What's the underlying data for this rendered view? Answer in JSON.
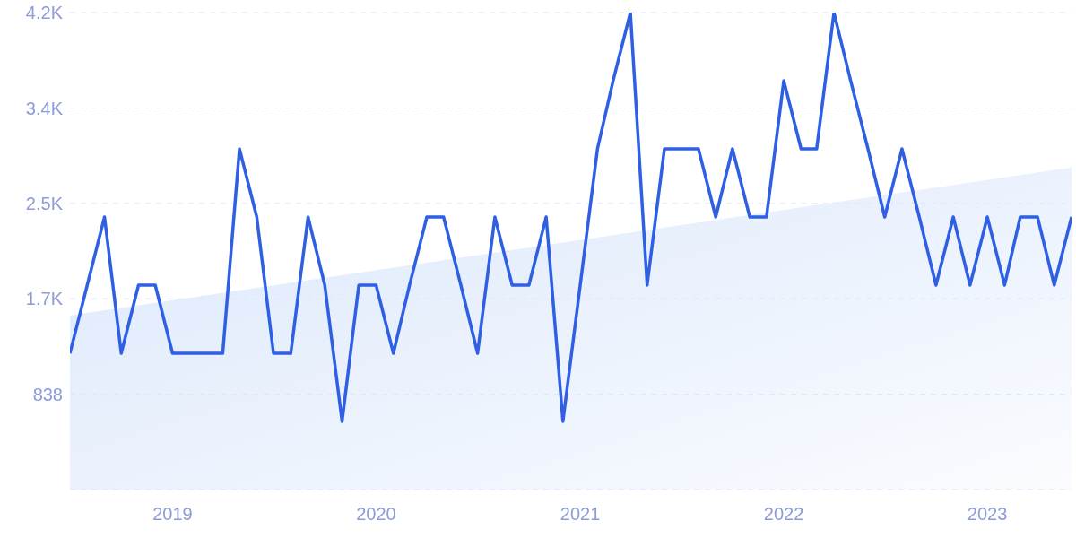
{
  "chart_data": {
    "type": "line",
    "x": [
      "2018-07",
      "2018-08",
      "2018-09",
      "2018-10",
      "2018-11",
      "2018-12",
      "2019-01",
      "2019-02",
      "2019-03",
      "2019-04",
      "2019-05",
      "2019-06",
      "2019-07",
      "2019-08",
      "2019-09",
      "2019-10",
      "2019-11",
      "2019-12",
      "2020-01",
      "2020-02",
      "2020-03",
      "2020-04",
      "2020-05",
      "2020-06",
      "2020-07",
      "2020-08",
      "2020-09",
      "2020-10",
      "2020-11",
      "2020-12",
      "2021-01",
      "2021-02",
      "2021-03",
      "2021-04",
      "2021-05",
      "2021-06",
      "2021-07",
      "2021-08",
      "2021-09",
      "2021-10",
      "2021-11",
      "2021-12",
      "2022-01",
      "2022-02",
      "2022-03",
      "2022-04",
      "2022-05",
      "2022-06",
      "2022-07",
      "2022-08",
      "2022-09",
      "2022-10",
      "2022-11",
      "2022-12",
      "2023-01",
      "2023-02",
      "2023-03",
      "2023-04",
      "2023-05",
      "2023-06"
    ],
    "series": [
      {
        "color": "#2f5fe3",
        "values": [
          1197,
          1796,
          2394,
          1197,
          1796,
          1796,
          1197,
          1197,
          1197,
          1197,
          2993,
          2394,
          1197,
          1197,
          2394,
          1796,
          599,
          1796,
          1796,
          1197,
          1796,
          2394,
          2394,
          1796,
          1197,
          2394,
          1796,
          1796,
          2394,
          599,
          1796,
          2993,
          3591,
          4190,
          1796,
          2993,
          2993,
          2993,
          2394,
          2993,
          2394,
          2394,
          3591,
          2993,
          2993,
          4190,
          3591,
          2993,
          2394,
          2993,
          2394,
          1796,
          2394,
          1796,
          2394,
          1796,
          2394,
          2394,
          1796,
          2394
        ]
      },
      {
        "type": "area",
        "color": "#dce8fb",
        "x": [
          "2018-07",
          "2023-06"
        ],
        "values": [
          1530,
          2830
        ]
      }
    ],
    "xlim": [
      "2018-07",
      "2023-06"
    ],
    "xticks": [
      "2019",
      "2020",
      "2021",
      "2022",
      "2023"
    ],
    "ylim": [
      0,
      4190
    ],
    "yticks": [
      838,
      {
        "value": 1676,
        "label": "1.7K"
      },
      {
        "value": 2514,
        "label": "2.5K"
      },
      {
        "value": 3352,
        "label": "3.4K"
      },
      {
        "value": 4190,
        "label": "4.2K"
      }
    ],
    "grid": "y",
    "marker": "none",
    "line_style": "solid"
  }
}
